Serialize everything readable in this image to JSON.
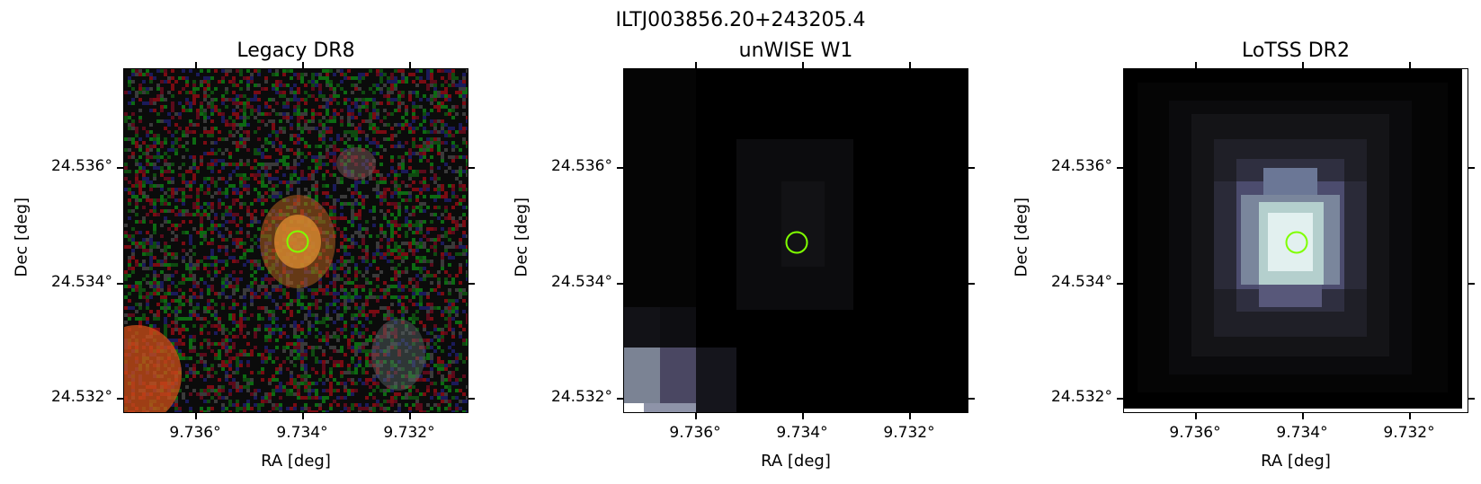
{
  "figure": {
    "suptitle": "ILTJ003856.20+243205.4"
  },
  "panels": [
    {
      "title": "Legacy DR8",
      "image": "optical-color-cutout",
      "background": "#0b0b0b"
    },
    {
      "title": "unWISE W1",
      "image": "infrared-grayscale-cutout",
      "background": "#000000"
    },
    {
      "title": "LoTSS DR2",
      "image": "radio-bone-colormap-cutout",
      "background": "#000000"
    }
  ],
  "axes": {
    "xlabel": "RA [deg]",
    "ylabel": "Dec [deg]",
    "x_ticks": [
      "9.736°",
      "9.734°",
      "9.732°"
    ],
    "y_ticks": [
      "24.536°",
      "24.534°",
      "24.532°"
    ]
  },
  "marker": {
    "shape": "circle",
    "color": "#7fff00",
    "ra": 9.7342,
    "dec": 24.5348
  }
}
